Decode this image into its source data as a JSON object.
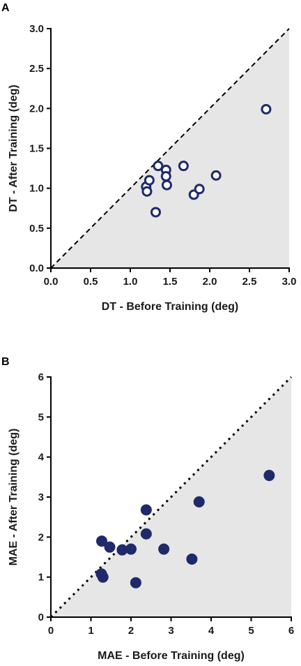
{
  "chart_data": [
    {
      "panel_label": "A",
      "type": "scatter",
      "xlabel": "DT - Before Training (deg)",
      "ylabel": "DT - After Training (deg)",
      "xlim": [
        0,
        3.0
      ],
      "ylim": [
        0,
        3.0
      ],
      "xticks": [
        "0.0",
        "0.5",
        "1.0",
        "1.5",
        "2.0",
        "2.5",
        "3.0"
      ],
      "yticks": [
        "0.0",
        "0.5",
        "1.0",
        "1.5",
        "2.0",
        "2.5",
        "3.0"
      ],
      "tick_values": [
        0,
        0.5,
        1.0,
        1.5,
        2.0,
        2.5,
        3.0
      ],
      "marker": "open-circle",
      "marker_color": "#1f2a6b",
      "shade_color": "#e6e6e6",
      "grid": false,
      "identity_line": "dashed",
      "points": [
        {
          "x": 1.2,
          "y": 1.02
        },
        {
          "x": 1.21,
          "y": 0.96
        },
        {
          "x": 1.24,
          "y": 1.1
        },
        {
          "x": 1.32,
          "y": 0.7
        },
        {
          "x": 1.35,
          "y": 1.28
        },
        {
          "x": 1.45,
          "y": 1.23
        },
        {
          "x": 1.45,
          "y": 1.15
        },
        {
          "x": 1.46,
          "y": 1.04
        },
        {
          "x": 1.67,
          "y": 1.28
        },
        {
          "x": 1.8,
          "y": 0.92
        },
        {
          "x": 1.87,
          "y": 0.99
        },
        {
          "x": 2.08,
          "y": 1.16
        },
        {
          "x": 2.71,
          "y": 1.99
        }
      ]
    },
    {
      "panel_label": "B",
      "type": "scatter",
      "xlabel": "MAE - Before Training (deg)",
      "ylabel": "MAE - After Training (deg)",
      "xlim": [
        0,
        6
      ],
      "ylim": [
        0,
        6
      ],
      "xticks": [
        "0",
        "1",
        "2",
        "3",
        "4",
        "5",
        "6"
      ],
      "yticks": [
        "0",
        "1",
        "2",
        "3",
        "4",
        "5",
        "6"
      ],
      "tick_values": [
        0,
        1,
        2,
        3,
        4,
        5,
        6
      ],
      "marker": "filled-circle",
      "marker_color": "#1f2a6b",
      "shade_color": "#e6e6e6",
      "grid": false,
      "identity_line": "dotted",
      "points": [
        {
          "x": 1.26,
          "y": 1.08
        },
        {
          "x": 1.3,
          "y": 1.0
        },
        {
          "x": 1.27,
          "y": 1.9
        },
        {
          "x": 1.47,
          "y": 1.75
        },
        {
          "x": 1.78,
          "y": 1.68
        },
        {
          "x": 2.0,
          "y": 1.7
        },
        {
          "x": 2.12,
          "y": 0.86
        },
        {
          "x": 2.38,
          "y": 2.68
        },
        {
          "x": 2.38,
          "y": 2.08
        },
        {
          "x": 2.82,
          "y": 1.7
        },
        {
          "x": 3.52,
          "y": 1.45
        },
        {
          "x": 3.7,
          "y": 2.88
        },
        {
          "x": 5.45,
          "y": 3.54
        }
      ]
    }
  ]
}
